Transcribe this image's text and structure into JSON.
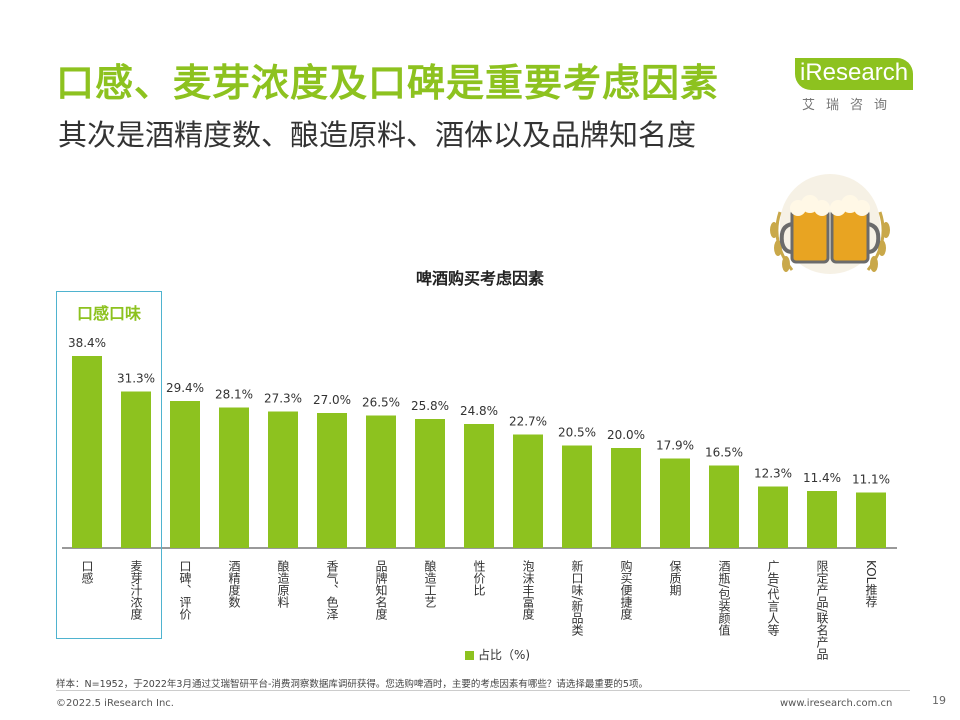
{
  "title": "口感、麦芽浓度及口碑是重要考虑因素",
  "subtitle": "其次是酒精度数、酿造原料、酒体以及品牌知名度",
  "logo": {
    "brand": "iResearch",
    "sub": "艾瑞咨询"
  },
  "highlight_label": "口感口味",
  "legend_label": "占比（%)",
  "footnote": "样本：N=1952，于2022年3月通过艾瑞智研平台-消费洞察数据库调研获得。您选购啤酒时，主要的考虑因素有哪些？请选择最重要的5项。",
  "copyright": "©2022.5 iResearch Inc.",
  "website": "www.iresearch.com.cn",
  "page_number": "19",
  "colors": {
    "accent": "#8dc21f",
    "highlight_border": "#4fb3cf"
  },
  "chart_data": {
    "type": "bar",
    "title": "啤酒购买考虑因素",
    "categories": [
      "口感",
      "麦芽汁浓度",
      "口碑、评价",
      "酒精度数",
      "酿造原料",
      "香气、色泽",
      "品牌知名度",
      "酿造工艺",
      "性价比",
      "泡沫丰富度",
      "新口味/新品类",
      "购买便捷度",
      "保质期",
      "酒瓶/包装颜值",
      "广告/代言人等",
      "限定产品/联名产品",
      "KOL推荐"
    ],
    "series": [
      {
        "name": "占比（%)",
        "values": [
          38.4,
          31.3,
          29.4,
          28.1,
          27.3,
          27.0,
          26.5,
          25.8,
          24.8,
          22.7,
          20.5,
          20.0,
          17.9,
          16.5,
          12.3,
          11.4,
          11.1
        ]
      }
    ],
    "value_labels": [
      "38.4%",
      "31.3%",
      "29.4%",
      "28.1%",
      "27.3%",
      "27.0%",
      "26.5%",
      "25.8%",
      "24.8%",
      "22.7%",
      "20.5%",
      "20.0%",
      "17.9%",
      "16.5%",
      "12.3%",
      "11.4%",
      "11.1%"
    ],
    "ylim": [
      0,
      40
    ],
    "grid": false,
    "legend_position": "bottom"
  }
}
